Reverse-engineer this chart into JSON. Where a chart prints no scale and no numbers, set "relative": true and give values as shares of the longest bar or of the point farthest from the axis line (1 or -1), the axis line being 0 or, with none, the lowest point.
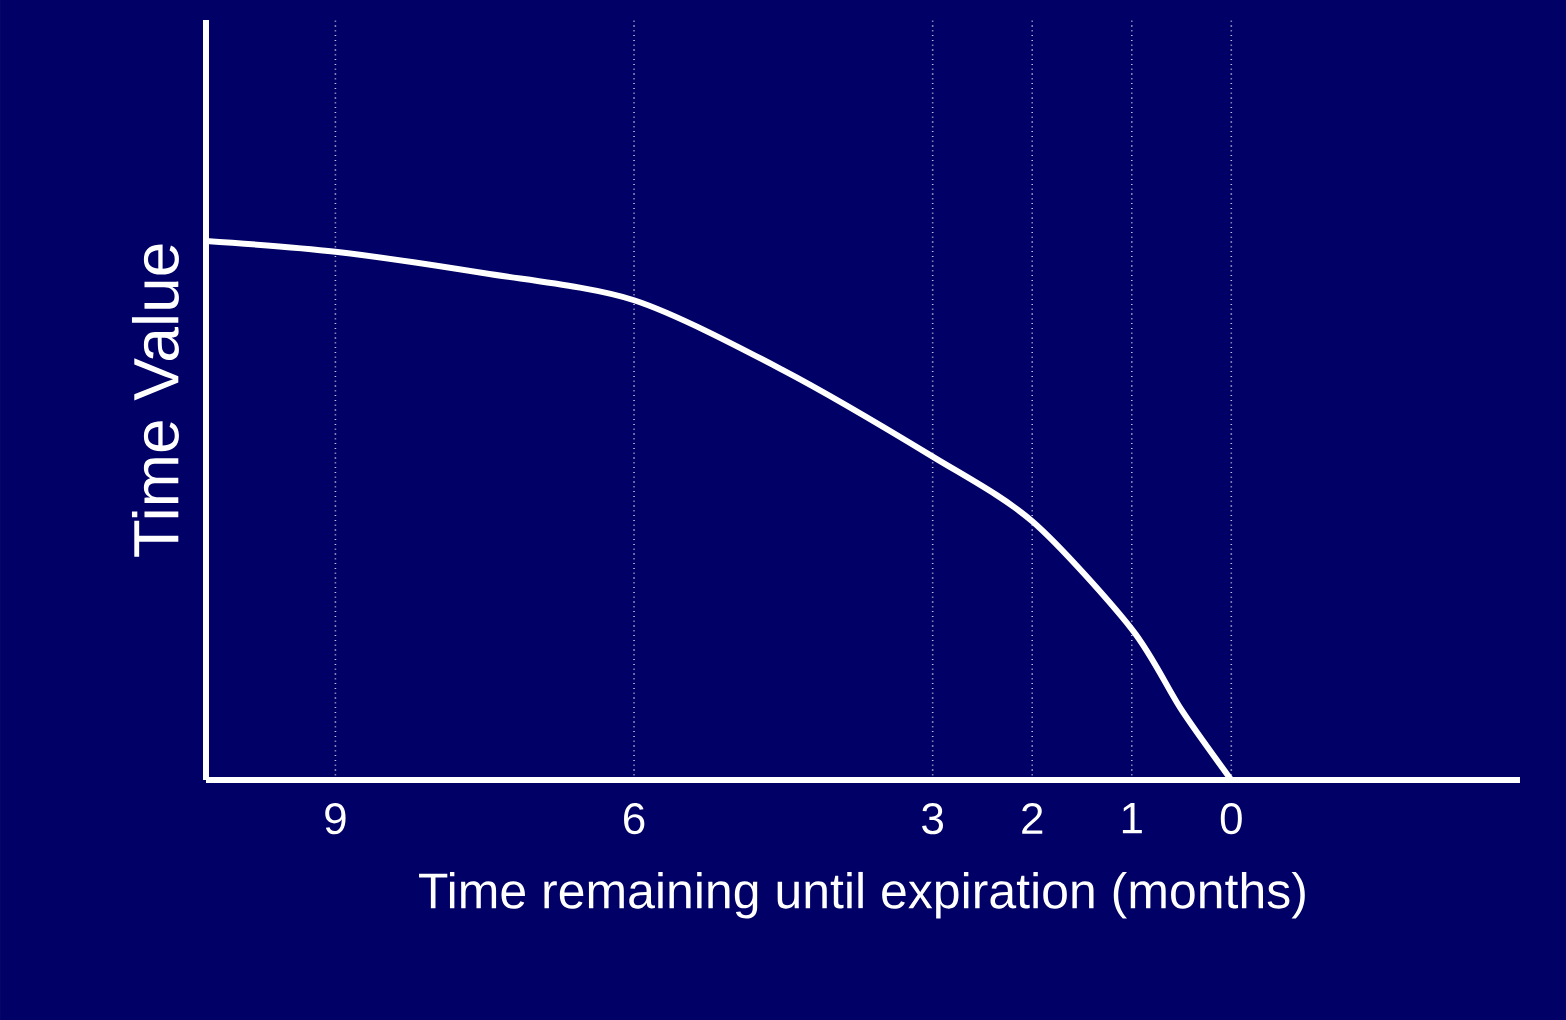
{
  "chart_data": {
    "type": "line",
    "xlabel": "Time remaining until expiration (months)",
    "ylabel": "Time Value",
    "relative": true,
    "x": [
      10.3,
      9,
      7.5,
      6,
      4.5,
      3,
      2,
      1,
      0.5,
      0
    ],
    "series": [
      {
        "color": "#ffffff",
        "values": [
          1.0,
          0.98,
          0.94,
          0.89,
          0.76,
          0.6,
          0.48,
          0.28,
          0.13,
          0
        ]
      }
    ],
    "xlim": [
      10.3,
      -2.9
    ],
    "xticks": [
      9,
      6,
      3,
      2,
      1,
      0
    ],
    "grid": "x",
    "marker": "none",
    "line_style": "solid"
  }
}
